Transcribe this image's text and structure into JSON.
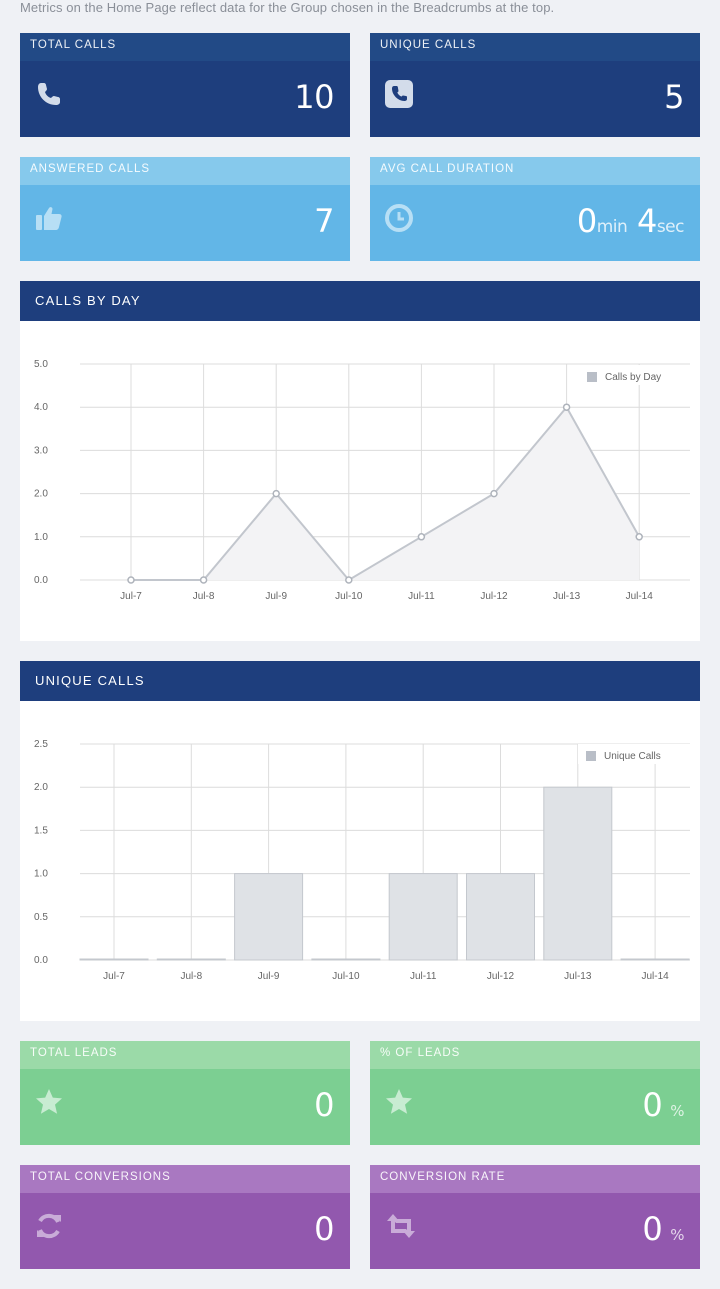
{
  "intro": "Metrics on the Home Page reflect data for the Group chosen in the Breadcrumbs at the top.",
  "cards": {
    "total_calls": {
      "label": "TOTAL CALLS",
      "value": "10",
      "icon": "phone-icon"
    },
    "unique_calls": {
      "label": "UNIQUE CALLS",
      "value": "5",
      "icon": "phone-square-icon"
    },
    "answered_calls": {
      "label": "ANSWERED CALLS",
      "value": "7",
      "icon": "thumbs-up-icon"
    },
    "avg_call_duration": {
      "label": "AVG CALL DURATION",
      "min_value": "0",
      "min_unit": "min",
      "sec_value": "4",
      "sec_unit": "sec",
      "icon": "clock-icon"
    },
    "total_leads": {
      "label": "TOTAL LEADS",
      "value": "0",
      "icon": "star-icon"
    },
    "pct_leads": {
      "label": "% OF LEADS",
      "value": "0",
      "unit": "%",
      "icon": "star-icon"
    },
    "total_conversions": {
      "label": "TOTAL CONVERSIONS",
      "value": "0",
      "icon": "refresh-icon"
    },
    "conversion_rate": {
      "label": "CONVERSION RATE",
      "value": "0",
      "unit": "%",
      "icon": "retweet-icon"
    }
  },
  "panels": {
    "calls_by_day": {
      "title": "CALLS BY DAY"
    },
    "unique_calls": {
      "title": "UNIQUE CALLS"
    }
  },
  "colors": {
    "navy": "#1e3e7d",
    "sky": "#62b6e7",
    "green": "#7ccf92",
    "purple": "#9258ae"
  },
  "chart_data": [
    {
      "type": "area",
      "title": "",
      "categories": [
        "Jul-7",
        "Jul-8",
        "Jul-9",
        "Jul-10",
        "Jul-11",
        "Jul-12",
        "Jul-13",
        "Jul-14"
      ],
      "series": [
        {
          "name": "Calls by Day",
          "values": [
            0,
            0,
            2,
            0,
            1,
            2,
            4,
            1
          ]
        }
      ],
      "yticks": [
        "0.0",
        "1.0",
        "2.0",
        "3.0",
        "4.0",
        "5.0"
      ],
      "ylim": [
        0,
        5
      ],
      "grid": true,
      "legend": "top-right"
    },
    {
      "type": "bar",
      "title": "",
      "categories": [
        "Jul-7",
        "Jul-8",
        "Jul-9",
        "Jul-10",
        "Jul-11",
        "Jul-12",
        "Jul-13",
        "Jul-14"
      ],
      "series": [
        {
          "name": "Unique Calls",
          "values": [
            0,
            0,
            1,
            0,
            1,
            1,
            2,
            0
          ]
        }
      ],
      "yticks": [
        "0.0",
        "0.5",
        "1.0",
        "1.5",
        "2.0",
        "2.5"
      ],
      "ylim": [
        0,
        2.5
      ],
      "grid": true,
      "legend": "top-right"
    }
  ]
}
